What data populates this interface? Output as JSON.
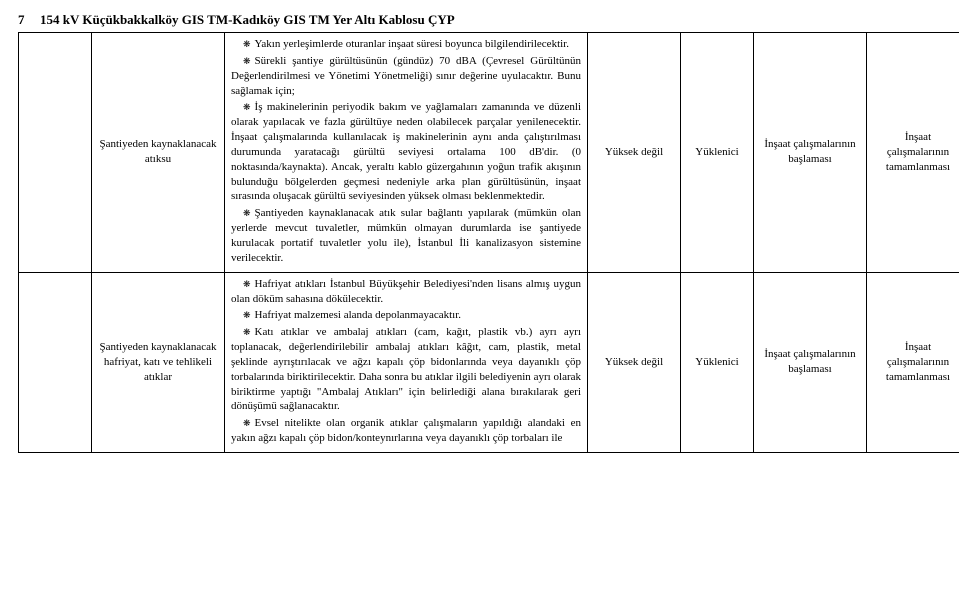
{
  "header": {
    "page_number": "7",
    "title": "154 kV Küçükbakkalköy GIS TM-Kadıköy GIS TM Yer Altı Kablosu ÇYP"
  },
  "row1": {
    "col_b": "Şantiyeden kaynaklanacak atıksu",
    "para1": "Yakın yerleşimlerde oturanlar inşaat süresi boyunca bilgilendirilecektir.",
    "para2": "Sürekli şantiye gürültüsünün (gündüz) 70 dBA (Çevresel Gürültünün Değerlendirilmesi ve Yönetimi Yönetmeliği) sınır değerine uyulacaktır. Bunu sağlamak için;",
    "para3": "İş makinelerinin periyodik bakım ve yağlamaları zamanında ve düzenli olarak yapılacak ve fazla gürültüye neden olabilecek parçalar yenilenecektir. İnşaat çalışmalarında kullanılacak iş makinelerinin aynı anda çalıştırılması durumunda yaratacağı gürültü seviyesi ortalama 100 dB'dir. (0 noktasında/kaynakta). Ancak, yeraltı kablo güzergahının yoğun trafik akışının bulunduğu bölgelerden geçmesi nedeniyle arka plan gürültüsünün, inşaat sırasında oluşacak gürültü seviyesinden yüksek olması beklenmektedir.",
    "para4": "Şantiyeden kaynaklanacak atık sular bağlantı yapılarak (mümkün olan yerlerde mevcut tuvaletler, mümkün olmayan durumlarda ise şantiyede kurulacak portatif tuvaletler yolu ile), İstanbul İli kanalizasyon sistemine verilecektir.",
    "col_d": "Yüksek değil",
    "col_e": "Yüklenici",
    "col_f": "İnşaat çalışmalarının başlaması",
    "col_g": "İnşaat çalışmalarının tamamlanması"
  },
  "row2": {
    "col_b": "Şantiyeden kaynaklanacak hafriyat, katı ve tehlikeli atıklar",
    "para1": "Hafriyat atıkları İstanbul Büyükşehir Belediyesi'nden lisans almış uygun olan döküm sahasına dökülecektir.",
    "para2": "Hafriyat malzemesi alanda depolanmayacaktır.",
    "para3": "Katı atıklar ve ambalaj atıkları (cam, kağıt, plastik vb.) ayrı ayrı toplanacak, değerlendirilebilir ambalaj atıkları kâğıt, cam, plastik, metal şeklinde ayrıştırılacak ve ağzı kapalı çöp bidonlarında veya dayanıklı çöp torbalarında biriktirilecektir. Daha sonra bu atıklar ilgili belediyenin ayrı olarak biriktirme yaptığı \"Ambalaj Atıkları\" için belirlediği alana bırakılarak geri dönüşümü sağlanacaktır.",
    "para4": "Evsel nitelikte olan organik atıklar çalışmaların yapıldığı alandaki en yakın ağzı kapalı çöp bidon/konteynırlarına veya dayanıklı çöp torbaları ile",
    "col_d": "Yüksek değil",
    "col_e": "Yüklenici",
    "col_f": "İnşaat çalışmalarının başlaması",
    "col_g": "İnşaat çalışmalarının tamamlanması"
  }
}
